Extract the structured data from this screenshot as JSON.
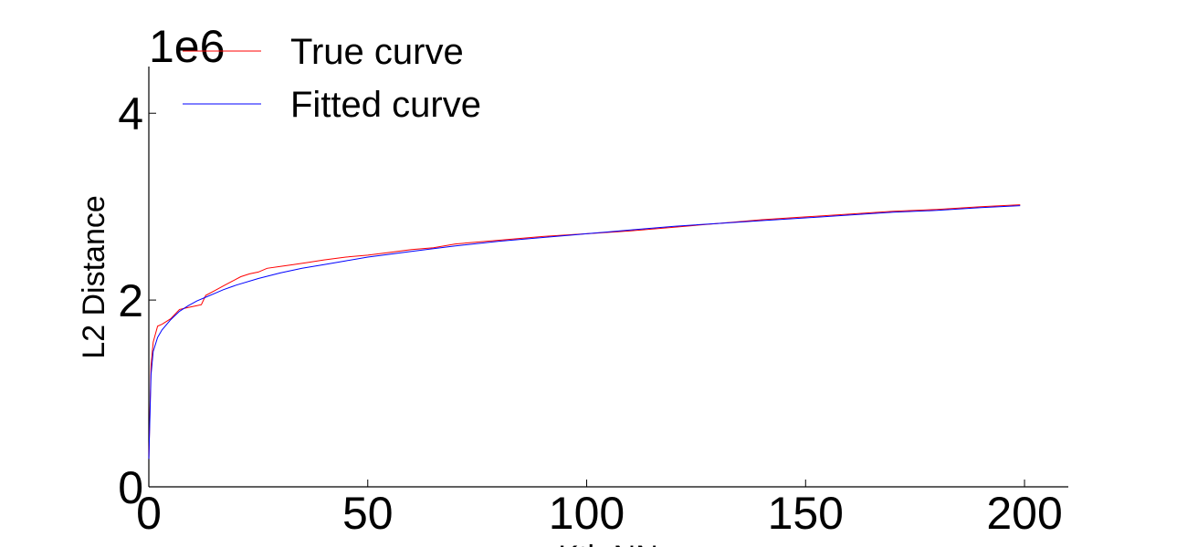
{
  "chart_data": {
    "type": "line",
    "title": "",
    "xlabel": "Kth NN",
    "ylabel": "L2 Distance",
    "y_offset_label": "1e6",
    "xlim": [
      0,
      210
    ],
    "ylim": [
      0,
      4.5
    ],
    "x_ticks": [
      0,
      50,
      100,
      150,
      200
    ],
    "y_ticks": [
      0,
      2,
      4
    ],
    "grid": false,
    "legend_position": "top-left",
    "series": [
      {
        "name": "True curve",
        "color": "#ff0000",
        "x": [
          0,
          0.5,
          1,
          2,
          3,
          5,
          7,
          9,
          11,
          12,
          13,
          15,
          17,
          19,
          21,
          23,
          25,
          27,
          30,
          33,
          36,
          40,
          45,
          50,
          55,
          60,
          65,
          70,
          80,
          90,
          100,
          110,
          120,
          130,
          140,
          150,
          160,
          170,
          180,
          190,
          199
        ],
        "y": [
          0.3,
          1.3,
          1.55,
          1.72,
          1.74,
          1.8,
          1.9,
          1.92,
          1.94,
          1.95,
          2.05,
          2.1,
          2.15,
          2.2,
          2.25,
          2.28,
          2.3,
          2.34,
          2.36,
          2.38,
          2.4,
          2.43,
          2.46,
          2.48,
          2.51,
          2.54,
          2.56,
          2.6,
          2.64,
          2.68,
          2.71,
          2.74,
          2.78,
          2.82,
          2.86,
          2.89,
          2.92,
          2.95,
          2.97,
          3.0,
          3.02
        ]
      },
      {
        "name": "Fitted curve",
        "color": "#0000ff",
        "x": [
          0,
          0.5,
          1,
          2,
          3,
          5,
          7,
          9,
          11,
          13,
          15,
          17,
          20,
          25,
          30,
          35,
          40,
          45,
          50,
          60,
          70,
          80,
          90,
          100,
          110,
          120,
          130,
          140,
          150,
          160,
          170,
          180,
          190,
          199
        ],
        "y": [
          0.3,
          1.2,
          1.45,
          1.6,
          1.68,
          1.79,
          1.88,
          1.94,
          1.99,
          2.03,
          2.07,
          2.11,
          2.16,
          2.23,
          2.29,
          2.34,
          2.38,
          2.42,
          2.46,
          2.52,
          2.58,
          2.63,
          2.67,
          2.71,
          2.75,
          2.79,
          2.82,
          2.85,
          2.88,
          2.91,
          2.94,
          2.96,
          2.99,
          3.01
        ]
      }
    ]
  }
}
